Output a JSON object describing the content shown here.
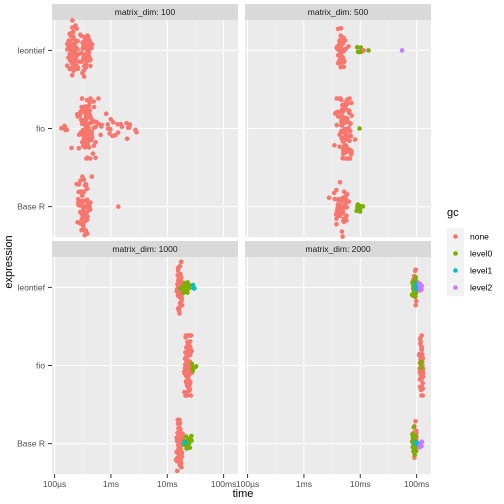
{
  "chart_data": {
    "type": "beeswarm",
    "xlabel": "time",
    "ylabel": "expression",
    "x_scale": "log10",
    "x_ticks": [
      "100µs",
      "1ms",
      "10ms",
      "100ms"
    ],
    "x_tick_values_seconds": [
      0.0001,
      0.001,
      0.01,
      0.1
    ],
    "xlim_seconds": [
      9e-05,
      0.18
    ],
    "y_categories": [
      "leontief",
      "fio",
      "Base R"
    ],
    "legend": {
      "title": "gc",
      "placement": "right",
      "items": [
        {
          "label": "none",
          "color": "#F8766D"
        },
        {
          "label": "level0",
          "color": "#7CAE00"
        },
        {
          "label": "level1",
          "color": "#00BFC4"
        },
        {
          "label": "level2",
          "color": "#C77CFF"
        }
      ]
    },
    "panels": [
      {
        "strip": "matrix_dim: 100",
        "groups": [
          {
            "expression": "leontief",
            "points": [
              {
                "gc": "none",
                "center_s": 0.000215,
                "spread": 0.15,
                "count": 70
              },
              {
                "gc": "none",
                "center_s": 0.00036,
                "spread": 0.15,
                "count": 60
              }
            ]
          },
          {
            "expression": "fio",
            "points": [
              {
                "gc": "none",
                "center_s": 0.00037,
                "spread": 0.22,
                "count": 110
              },
              {
                "gc": "none",
                "center_s": 0.0013,
                "spread": 0.55,
                "count": 25
              },
              {
                "gc": "none",
                "center_s": 0.00015,
                "spread": 0.15,
                "count": 6
              }
            ]
          },
          {
            "expression": "Base R",
            "points": [
              {
                "gc": "none",
                "center_s": 0.00033,
                "spread": 0.18,
                "count": 70
              },
              {
                "gc": "none",
                "center_s": 0.00135,
                "spread": 0.0,
                "count": 1
              }
            ]
          }
        ]
      },
      {
        "strip": "matrix_dim: 500",
        "groups": [
          {
            "expression": "leontief",
            "points": [
              {
                "gc": "none",
                "center_s": 0.0045,
                "spread": 0.12,
                "count": 60
              },
              {
                "gc": "level0",
                "center_s": 0.0095,
                "spread": 0.12,
                "count": 6
              },
              {
                "gc": "none",
                "center_s": 0.0115,
                "spread": 0.0,
                "count": 1
              },
              {
                "gc": "level0",
                "center_s": 0.014,
                "spread": 0.0,
                "count": 1
              },
              {
                "gc": "level2",
                "center_s": 0.055,
                "spread": 0.0,
                "count": 1
              }
            ]
          },
          {
            "expression": "fio",
            "points": [
              {
                "gc": "none",
                "center_s": 0.0055,
                "spread": 0.2,
                "count": 95
              },
              {
                "gc": "level0",
                "center_s": 0.0097,
                "spread": 0.0,
                "count": 1
              }
            ]
          },
          {
            "expression": "Base R",
            "points": [
              {
                "gc": "none",
                "center_s": 0.0047,
                "spread": 0.16,
                "count": 60
              },
              {
                "gc": "level0",
                "center_s": 0.0095,
                "spread": 0.1,
                "count": 10
              }
            ]
          }
        ]
      },
      {
        "strip": "matrix_dim: 1000",
        "groups": [
          {
            "expression": "leontief",
            "points": [
              {
                "gc": "none",
                "center_s": 0.0165,
                "spread": 0.08,
                "count": 70
              },
              {
                "gc": "level0",
                "center_s": 0.0225,
                "spread": 0.12,
                "count": 20
              },
              {
                "gc": "level1",
                "center_s": 0.0295,
                "spread": 0.05,
                "count": 3
              }
            ]
          },
          {
            "expression": "fio",
            "points": [
              {
                "gc": "none",
                "center_s": 0.0235,
                "spread": 0.1,
                "count": 95
              },
              {
                "gc": "level0",
                "center_s": 0.029,
                "spread": 0.08,
                "count": 6
              }
            ]
          },
          {
            "expression": "Base R",
            "points": [
              {
                "gc": "none",
                "center_s": 0.0165,
                "spread": 0.08,
                "count": 70
              },
              {
                "gc": "level0",
                "center_s": 0.022,
                "spread": 0.12,
                "count": 20
              },
              {
                "gc": "level1",
                "center_s": 0.0205,
                "spread": 0.03,
                "count": 3
              }
            ]
          }
        ]
      },
      {
        "strip": "matrix_dim: 2000",
        "groups": [
          {
            "expression": "leontief",
            "points": [
              {
                "gc": "none",
                "center_s": 0.093,
                "spread": 0.05,
                "count": 45
              },
              {
                "gc": "level0",
                "center_s": 0.092,
                "spread": 0.05,
                "count": 25
              },
              {
                "gc": "level1",
                "center_s": 0.095,
                "spread": 0.03,
                "count": 4
              },
              {
                "gc": "level2",
                "center_s": 0.118,
                "spread": 0.04,
                "count": 12
              }
            ]
          },
          {
            "expression": "fio",
            "points": [
              {
                "gc": "none",
                "center_s": 0.122,
                "spread": 0.04,
                "count": 80
              },
              {
                "gc": "level0",
                "center_s": 0.121,
                "spread": 0.03,
                "count": 4
              }
            ]
          },
          {
            "expression": "Base R",
            "points": [
              {
                "gc": "none",
                "center_s": 0.093,
                "spread": 0.05,
                "count": 45
              },
              {
                "gc": "level0",
                "center_s": 0.092,
                "spread": 0.05,
                "count": 25
              },
              {
                "gc": "level1",
                "center_s": 0.096,
                "spread": 0.03,
                "count": 4
              },
              {
                "gc": "level2",
                "center_s": 0.118,
                "spread": 0.04,
                "count": 10
              }
            ]
          }
        ]
      }
    ]
  }
}
